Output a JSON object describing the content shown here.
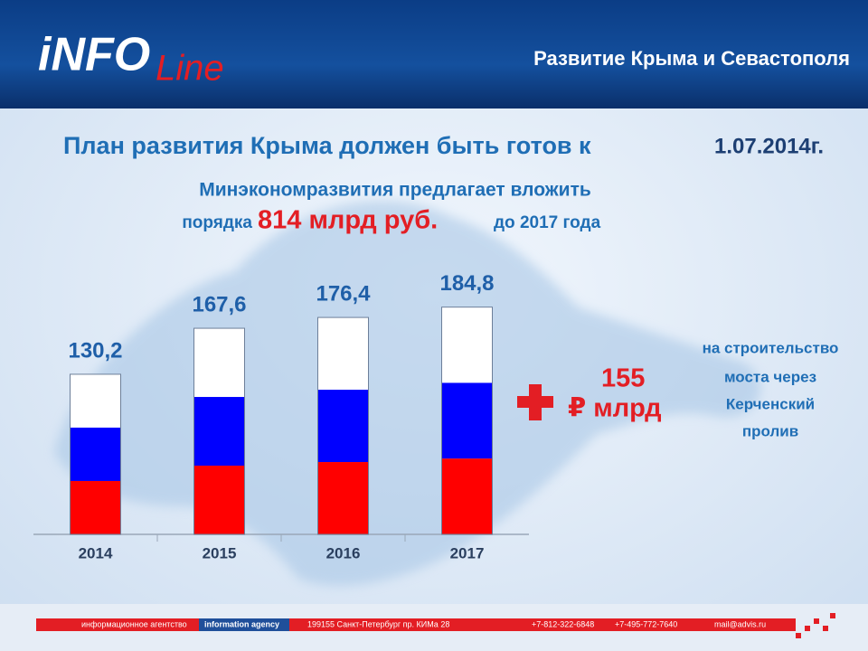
{
  "header": {
    "logo_main": "iNFO",
    "logo_script": "Line",
    "title": "Развитие Крыма и Севастополя"
  },
  "headline": {
    "text": "План развития Крыма должен быть готов к",
    "date": "1.07.2014г."
  },
  "subheadline": {
    "line1": "Минэкономразвития предлагает вложить",
    "prefix": "порядка",
    "amount": "814 млрд руб.",
    "suffix": "до 2017 года"
  },
  "chart_data": {
    "type": "bar",
    "categories": [
      "2014",
      "2015",
      "2016",
      "2017"
    ],
    "values": [
      130.2,
      167.6,
      176.4,
      184.8
    ],
    "value_labels": [
      "130,2",
      "167,6",
      "176,4",
      "184,8"
    ],
    "stripe_colors": [
      "#ffffff",
      "#0000ff",
      "#ff0000"
    ]
  },
  "bridge": {
    "plus_amount": "155",
    "unit": "₽ млрд",
    "note": [
      "на строительство",
      "моста через",
      "Керченский",
      "пролив"
    ]
  },
  "footer": {
    "agency_ru": "информационное агентство",
    "agency_en": "information agency",
    "address": "199155 Санкт-Петербург пр. КИМа 28",
    "phone1": "+7-812-322-6848",
    "phone2": "+7-495-772-7640",
    "email": "mail@advis.ru"
  }
}
